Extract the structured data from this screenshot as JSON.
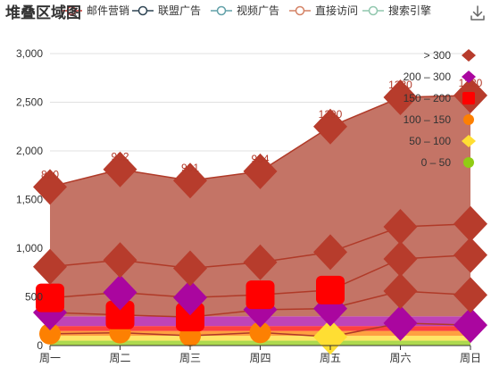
{
  "chart_data": {
    "type": "area",
    "stacked": true,
    "title": "堆叠区域图",
    "categories": [
      "周一",
      "周二",
      "周三",
      "周四",
      "周五",
      "周六",
      "周日"
    ],
    "yticks": [
      "0",
      "500",
      "1,000",
      "1,500",
      "2,000",
      "2,500",
      "3,000"
    ],
    "ylim": [
      0,
      3000
    ],
    "grid": true,
    "series": [
      {
        "name": "邮件营销",
        "values": [
          120,
          132,
          101,
          134,
          90,
          230,
          210
        ],
        "color": "#c23531"
      },
      {
        "name": "联盟广告",
        "values": [
          220,
          182,
          191,
          234,
          290,
          330,
          310
        ],
        "color": "#2f4554"
      },
      {
        "name": "视频广告",
        "values": [
          150,
          232,
          201,
          154,
          190,
          330,
          410
        ],
        "color": "#61a0a8"
      },
      {
        "name": "直接访问",
        "values": [
          320,
          332,
          301,
          334,
          390,
          330,
          320
        ],
        "color": "#d48265"
      },
      {
        "name": "搜索引擎",
        "values": [
          820,
          932,
          901,
          934,
          1290,
          1330,
          1320
        ],
        "color": "#91c7ae"
      }
    ],
    "top_labels": [
      "820",
      "932",
      "901",
      "934",
      "1290",
      "1330",
      "1320"
    ],
    "visual_map": [
      {
        "label": "> 300",
        "min": 300,
        "max": null,
        "color": "#b73c2c",
        "shape": "diamond"
      },
      {
        "label": "200 – 300",
        "min": 200,
        "max": 300,
        "color": "#aa069f",
        "shape": "diamond"
      },
      {
        "label": "150 – 200",
        "min": 150,
        "max": 200,
        "color": "#ff0000",
        "shape": "roundRect"
      },
      {
        "label": "100 – 150",
        "min": 100,
        "max": 150,
        "color": "#fd8002",
        "shape": "circle"
      },
      {
        "label": "50 – 100",
        "min": 50,
        "max": 100,
        "color": "#ffde33",
        "shape": "diamond"
      },
      {
        "label": "0 – 50",
        "min": 0,
        "max": 50,
        "color": "#91cc14",
        "shape": "circle"
      }
    ],
    "area_fill": "#c47466",
    "line_color": "#b03a28"
  },
  "toolbox": {
    "icon": "download-icon"
  }
}
